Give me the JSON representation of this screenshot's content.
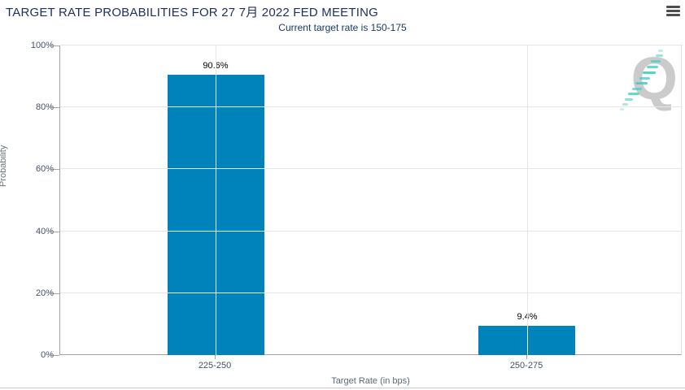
{
  "header": {
    "title": "TARGET RATE PROBABILITIES FOR 27 7月 2022 FED MEETING",
    "menu_icon": "hamburger-menu"
  },
  "subtitle": "Current target rate is 150-175",
  "watermark": {
    "letter": "Q",
    "name": "quandl-q-watermark"
  },
  "colors": {
    "bar": "#0082bb",
    "title_text": "#1c2f5c",
    "subtitle_text": "#173a66",
    "axis_label_text": "#44506b",
    "axis_title_text": "#5e6b7a",
    "gridline": "#e6e6e6",
    "axis_line": "#a3a3a3",
    "watermark_gray": "#cbcbcb",
    "watermark_teal": "#3fcfc4"
  },
  "chart_data": {
    "type": "bar",
    "title": "TARGET RATE PROBABILITIES FOR 27 7月 2022 FED MEETING",
    "subtitle": "Current target rate is 150-175",
    "categories": [
      "225-250",
      "250-275"
    ],
    "values": [
      90.6,
      9.4
    ],
    "value_labels": [
      "90.6%",
      "9.4%"
    ],
    "xlabel": "Target Rate (in bps)",
    "ylabel": "Probability",
    "ylim": [
      0,
      100
    ],
    "yticks": [
      0,
      20,
      40,
      60,
      80,
      100
    ],
    "ytick_labels": [
      "0%",
      "20%",
      "40%",
      "60%",
      "80%",
      "100%"
    ],
    "grid": true,
    "legend": "none",
    "bar_color": "#0082bb"
  }
}
